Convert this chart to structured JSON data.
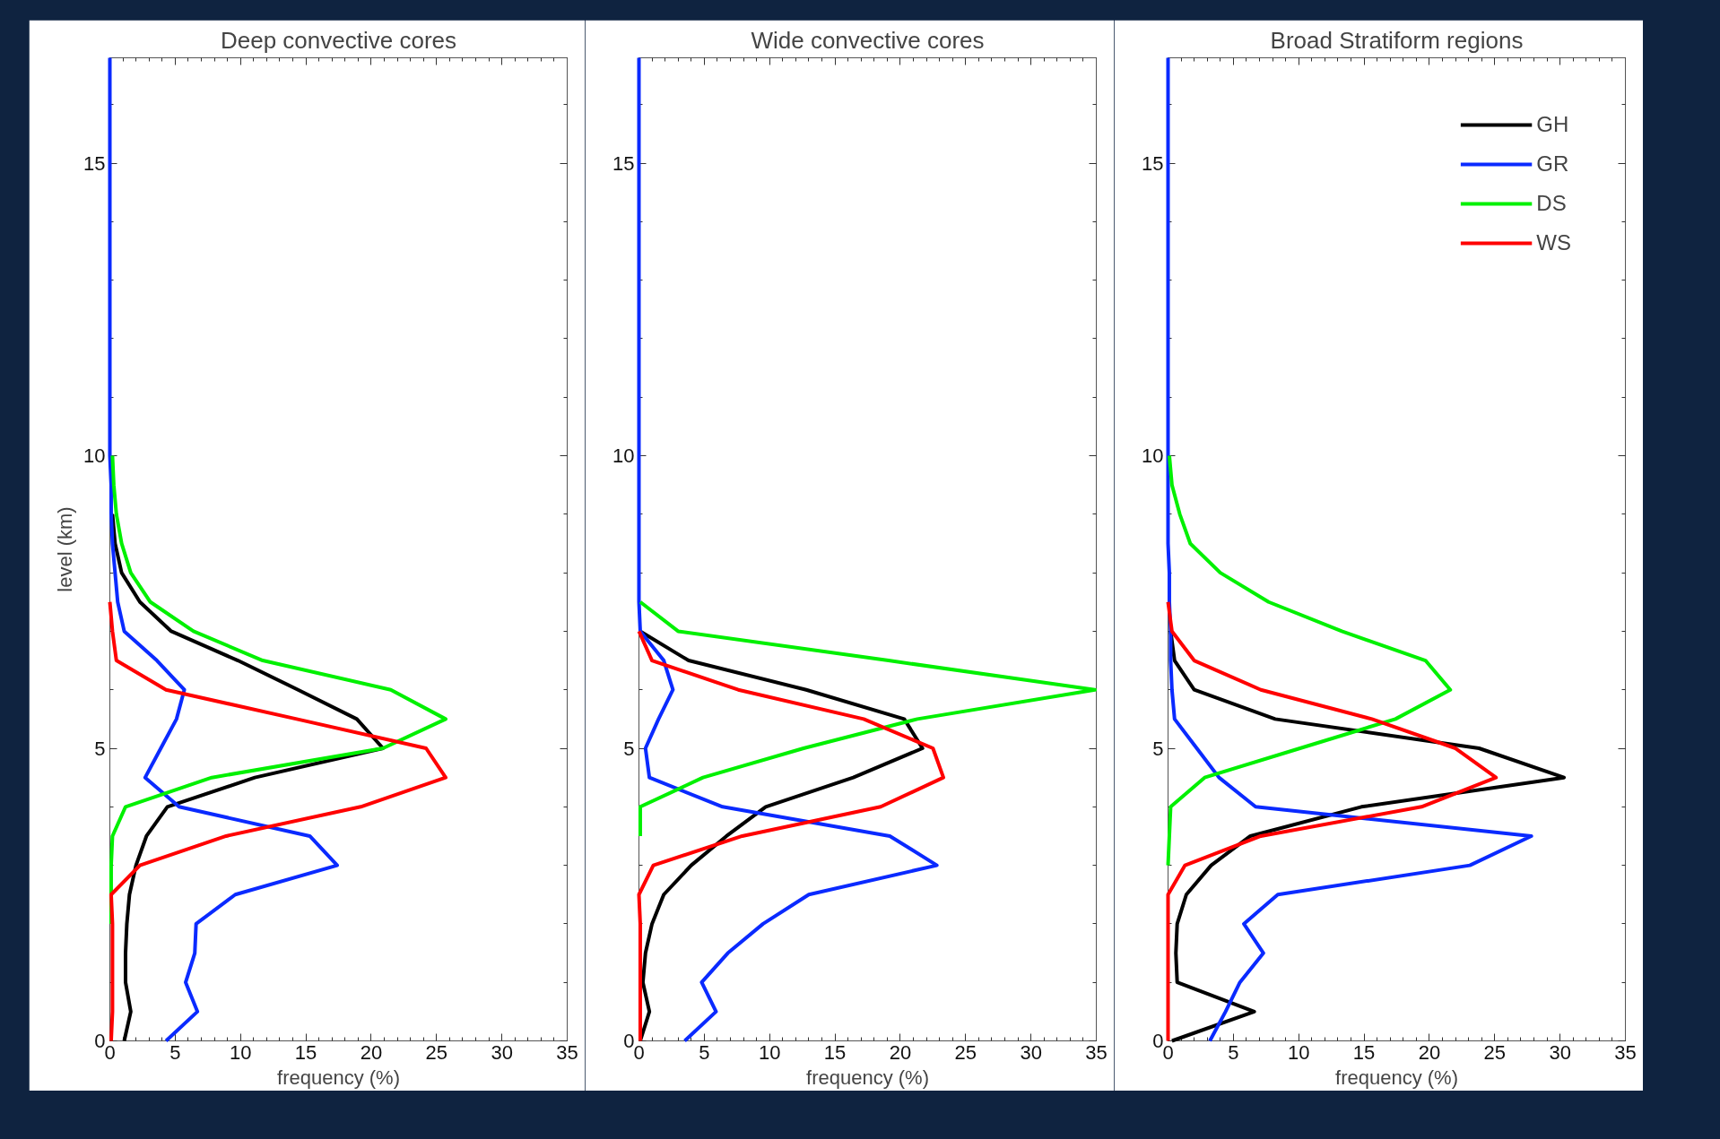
{
  "chart_data": [
    {
      "type": "line",
      "title": "Deep convective cores",
      "xlabel": "frequency (%)",
      "ylabel": "level (km)",
      "xlim": [
        0,
        35
      ],
      "xticks": [
        0,
        5,
        10,
        15,
        20,
        25,
        30,
        35
      ],
      "ylim": [
        0,
        16.8
      ],
      "yticks": [
        0,
        5,
        10,
        15
      ],
      "grid": false,
      "legend": false,
      "series": [
        {
          "color": "#000000",
          "x": [
            1.1,
            1.6,
            1.2,
            1.2,
            1.3,
            1.5,
            2.0,
            2.8,
            4.4,
            11.1,
            20.9,
            18.9,
            14.4,
            9.8,
            4.7,
            2.3,
            0.9,
            0.4,
            0.2
          ],
          "values": [
            0,
            0.5,
            1,
            1.5,
            2,
            2.5,
            3,
            3.5,
            4,
            4.5,
            5,
            5.5,
            6,
            6.5,
            7,
            7.5,
            8,
            8.5,
            9
          ]
        },
        {
          "color": "#0a2aff",
          "x": [
            4.3,
            6.7,
            5.8,
            6.5,
            6.6,
            9.6,
            17.4,
            15.3,
            5.3,
            2.7,
            3.9,
            5.1,
            5.7,
            3.6,
            1.1,
            0.6,
            0.4,
            0.2,
            0.1,
            0.1,
            0,
            0
          ],
          "values": [
            0,
            0.5,
            1,
            1.5,
            2,
            2.5,
            3,
            3.5,
            4,
            4.5,
            5,
            5.5,
            6,
            6.5,
            7,
            7.5,
            8,
            8.5,
            9,
            9.5,
            10,
            16.8
          ]
        },
        {
          "color": "#00f000",
          "x": [
            0.1,
            0.1,
            0.1,
            0.2,
            1.2,
            7.8,
            20.9,
            25.7,
            21.5,
            11.7,
            6.4,
            3.1,
            1.6,
            0.9,
            0.5,
            0.3,
            0.2
          ],
          "values": [
            2,
            2.5,
            3,
            3.5,
            4,
            4.5,
            5,
            5.5,
            6,
            6.5,
            7,
            7.5,
            8,
            8.5,
            9,
            9.5,
            10
          ]
        },
        {
          "color": "#ff0000",
          "x": [
            0.1,
            0.2,
            0.2,
            0.2,
            0.2,
            0.1,
            2.3,
            8.9,
            19.2,
            25.7,
            24.2,
            14.3,
            4.3,
            0.5,
            0.2,
            0
          ],
          "values": [
            0,
            0.5,
            1,
            1.5,
            2,
            2.5,
            3,
            3.5,
            4,
            4.5,
            5,
            5.5,
            6,
            6.5,
            7,
            7.5
          ]
        }
      ]
    },
    {
      "type": "line",
      "title": "Wide convective cores",
      "xlabel": "frequency (%)",
      "xlim": [
        0,
        35
      ],
      "xticks": [
        0,
        5,
        10,
        15,
        20,
        25,
        30,
        35
      ],
      "ylim": [
        0,
        16.8
      ],
      "yticks": [
        0,
        5,
        10,
        15
      ],
      "grid": false,
      "legend": false,
      "series": [
        {
          "color": "#000000",
          "x": [
            0.1,
            0.8,
            0.3,
            0.5,
            1.0,
            1.9,
            4.0,
            6.7,
            9.7,
            16.4,
            21.7,
            20.3,
            12.8,
            3.8,
            0.1
          ],
          "values": [
            0,
            0.5,
            1,
            1.5,
            2,
            2.5,
            3,
            3.5,
            4,
            4.5,
            5,
            5.5,
            6,
            6.5,
            7
          ]
        },
        {
          "color": "#0a2aff",
          "x": [
            3.5,
            5.9,
            4.8,
            6.8,
            9.5,
            13.0,
            22.8,
            19.2,
            6.4,
            0.8,
            0.5,
            1.5,
            2.6,
            1.9,
            0.1,
            0,
            0,
            0,
            0,
            0,
            0,
            0
          ],
          "values": [
            0,
            0.5,
            1,
            1.5,
            2,
            2.5,
            3,
            3.5,
            4,
            4.5,
            5,
            5.5,
            6,
            6.5,
            7,
            7.5,
            8,
            8.5,
            9,
            9.5,
            10,
            16.8
          ]
        },
        {
          "color": "#00f000",
          "x": [
            0.1,
            0.1,
            4.9,
            12.6,
            21.3,
            34.9,
            19.1,
            3.0,
            0.1
          ],
          "values": [
            3.5,
            4,
            4.5,
            5,
            5.5,
            6,
            6.5,
            7,
            7.5
          ]
        },
        {
          "color": "#ff0000",
          "x": [
            0.1,
            0.1,
            0.1,
            0.1,
            0.1,
            0,
            1.1,
            7.9,
            18.5,
            23.3,
            22.5,
            17.2,
            7.6,
            1.0,
            0
          ],
          "values": [
            0,
            0.5,
            1,
            1.5,
            2,
            2.5,
            3,
            3.5,
            4,
            4.5,
            5,
            5.5,
            6,
            6.5,
            7
          ]
        }
      ]
    },
    {
      "type": "line",
      "title": "Broad Stratiform regions",
      "xlabel": "frequency (%)",
      "xlim": [
        0,
        35
      ],
      "xticks": [
        0,
        5,
        10,
        15,
        20,
        25,
        30,
        35
      ],
      "ylim": [
        0,
        16.8
      ],
      "yticks": [
        0,
        5,
        10,
        15
      ],
      "grid": false,
      "legend": "top right",
      "series": [
        {
          "name": "GH",
          "color": "#000000",
          "x": [
            0.3,
            6.6,
            0.7,
            0.6,
            0.7,
            1.4,
            3.3,
            6.3,
            14.8,
            30.3,
            23.8,
            8.2,
            2.0,
            0.5,
            0.2
          ],
          "values": [
            0,
            0.5,
            1,
            1.5,
            2,
            2.5,
            3,
            3.5,
            4,
            4.5,
            5,
            5.5,
            6,
            6.5,
            7
          ]
        },
        {
          "name": "GR",
          "color": "#0a2aff",
          "x": [
            3.2,
            4.4,
            5.5,
            7.3,
            5.8,
            8.4,
            23.1,
            27.8,
            6.7,
            3.9,
            2.2,
            0.5,
            0.3,
            0.2,
            0.2,
            0.1,
            0.1,
            0,
            0,
            0,
            0,
            0
          ],
          "values": [
            0,
            0.5,
            1,
            1.5,
            2,
            2.5,
            3,
            3.5,
            4,
            4.5,
            5,
            5.5,
            6,
            6.5,
            7,
            7.5,
            8,
            8.5,
            9,
            9.5,
            10,
            16.8
          ]
        },
        {
          "name": "DS",
          "color": "#00f000",
          "x": [
            0,
            0.1,
            0.2,
            2.8,
            10.1,
            17.4,
            21.6,
            19.7,
            13.3,
            7.7,
            4.0,
            1.7,
            0.9,
            0.3,
            0.1
          ],
          "values": [
            3,
            3.5,
            4,
            4.5,
            5,
            5.5,
            6,
            6.5,
            7,
            7.5,
            8,
            8.5,
            9,
            9.5,
            10
          ]
        },
        {
          "name": "WS",
          "color": "#ff0000",
          "x": [
            0,
            0,
            0,
            0,
            0,
            0,
            1.3,
            7.1,
            19.4,
            25.1,
            22.0,
            15.6,
            7.1,
            2.0,
            0.3,
            0
          ],
          "values": [
            0,
            0.5,
            1,
            1.5,
            2,
            2.5,
            3,
            3.5,
            4,
            4.5,
            5,
            5.5,
            6,
            6.5,
            7,
            7.5
          ]
        }
      ]
    }
  ]
}
